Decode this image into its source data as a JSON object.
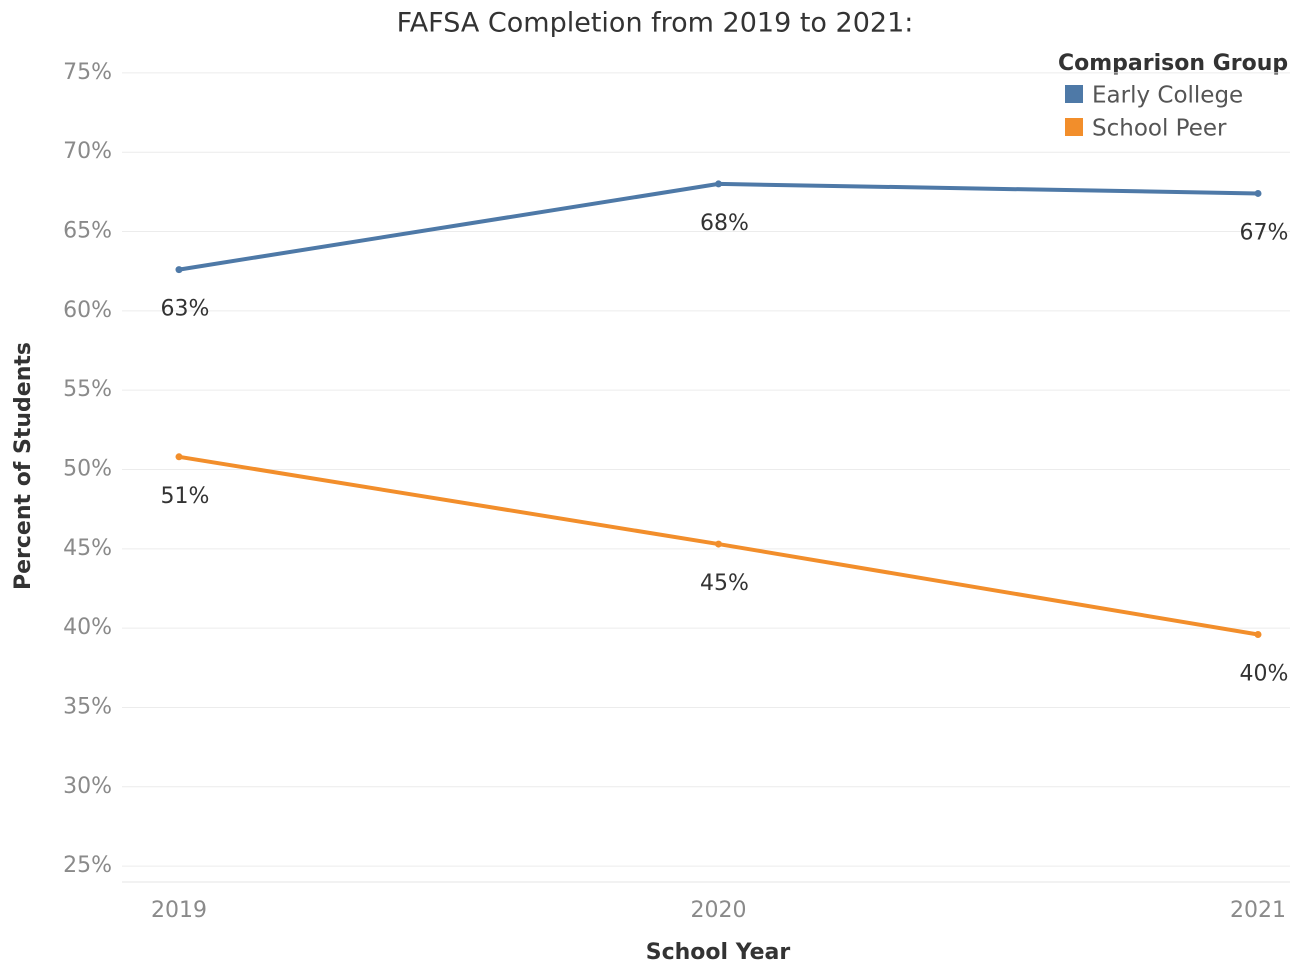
{
  "chart_data": {
    "type": "line",
    "title": "FAFSA Completion from 2019 to 2021:",
    "x_label": "School Year",
    "y_label": "Percent of Students",
    "legend_title": "Comparison Group",
    "legend_position": "top-right",
    "grid": true,
    "categories": [
      "2019",
      "2020",
      "2021"
    ],
    "series": [
      {
        "name": "Early College",
        "color": "#4e79a7",
        "values": [
          62.6,
          68.0,
          67.4
        ],
        "value_labels": [
          "63%",
          "68%",
          "67%"
        ]
      },
      {
        "name": "School Peer",
        "color": "#f28e2b",
        "values": [
          50.8,
          45.3,
          39.6
        ],
        "value_labels": [
          "51%",
          "45%",
          "40%"
        ]
      }
    ],
    "ylim": [
      24,
      76
    ],
    "yticks": [
      {
        "value": 25,
        "label": "25%"
      },
      {
        "value": 30,
        "label": "30%"
      },
      {
        "value": 35,
        "label": "35%"
      },
      {
        "value": 40,
        "label": "40%"
      },
      {
        "value": 45,
        "label": "45%"
      },
      {
        "value": 50,
        "label": "50%"
      },
      {
        "value": 55,
        "label": "55%"
      },
      {
        "value": 60,
        "label": "60%"
      },
      {
        "value": 65,
        "label": "65%"
      },
      {
        "value": 70,
        "label": "70%"
      },
      {
        "value": 75,
        "label": "75%"
      }
    ]
  }
}
